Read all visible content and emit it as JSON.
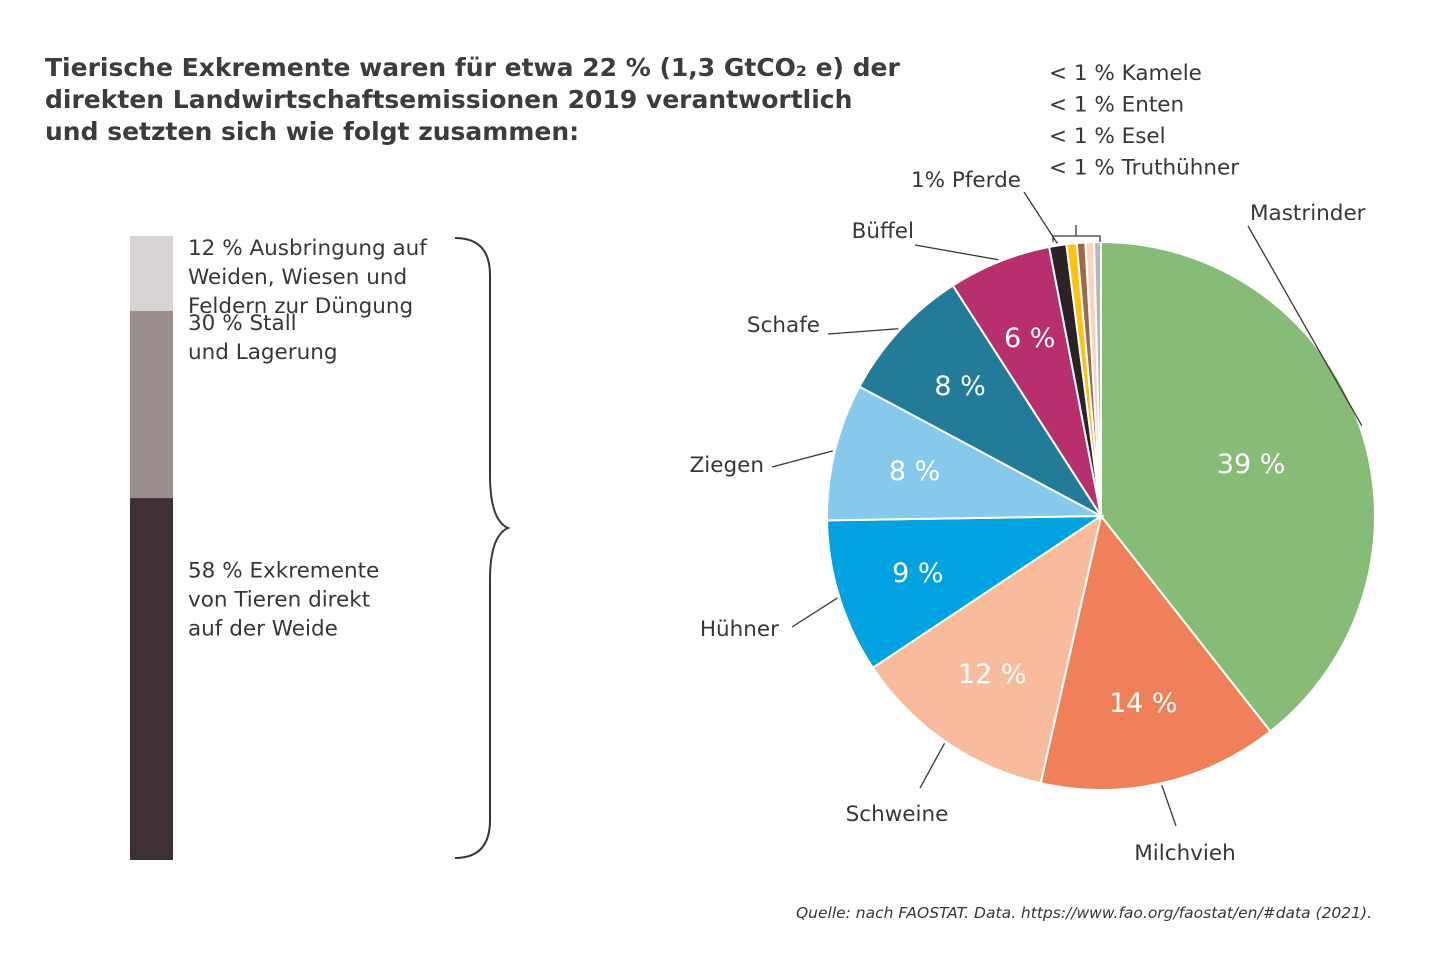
{
  "title": {
    "line1": "Tierische Exkremente waren für etwa 22 % (1,3 GtCO₂ e) der",
    "line2": "direkten Landwirtschaftsemissionen 2019 verantwortlich",
    "line3": "und setzten sich wie folgt zusammen:"
  },
  "source": "Quelle: nach FAOSTAT. Data. https://www.fao.org/faostat/en/#data (2021).",
  "chart_data": [
    {
      "type": "bar",
      "stacked": true,
      "series": [
        {
          "value": 12,
          "label_lines": [
            "12 % Ausbringung auf",
            "Weiden, Wiesen und",
            "Feldern zur Düngung"
          ],
          "color": "#d8d3d3"
        },
        {
          "value": 30,
          "label_lines": [
            "30 % Stall",
            "und Lagerung"
          ],
          "color": "#9a8e8f"
        },
        {
          "value": 58,
          "label_lines": [
            "58 % Exkremente",
            "von Tieren direkt",
            "auf der Weide"
          ],
          "color": "#3e3034"
        }
      ]
    },
    {
      "type": "pie",
      "slices": [
        {
          "name": "Mastrinder",
          "value": 39,
          "label": "39 %",
          "color": "#86bc78"
        },
        {
          "name": "Milchvieh",
          "value": 14,
          "label": "14 %",
          "color": "#f0805a"
        },
        {
          "name": "Schweine",
          "value": 12,
          "label": "12 %",
          "color": "#f8bb9d"
        },
        {
          "name": "Hühner",
          "value": 9,
          "label": "9 %",
          "color": "#00a3e0"
        },
        {
          "name": "Ziegen",
          "value": 8,
          "label": "8 %",
          "color": "#87c9ec"
        },
        {
          "name": "Schafe",
          "value": 8,
          "label": "8 %",
          "color": "#227b99"
        },
        {
          "name": "Büffel",
          "value": 6,
          "label": "6 %",
          "color": "#b82f6e"
        },
        {
          "name": "1% Pferde",
          "value": 1,
          "label": "",
          "color": "#2a2224"
        },
        {
          "name": "< 1 % Truthühner",
          "value": 0.6,
          "label": "",
          "color": "#ffc20e"
        },
        {
          "name": "< 1 % Esel",
          "value": 0.5,
          "label": "",
          "color": "#9a6b4a"
        },
        {
          "name": "< 1 % Enten",
          "value": 0.5,
          "label": "",
          "color": "#fbd4c0"
        },
        {
          "name": "< 1 % Kamele",
          "value": 0.4,
          "label": "",
          "color": "#b7b7b7"
        }
      ],
      "small_group_labels": [
        "< 1 % Kamele",
        "< 1 % Enten",
        "< 1 % Esel",
        "< 1 % Truthühner"
      ]
    }
  ]
}
